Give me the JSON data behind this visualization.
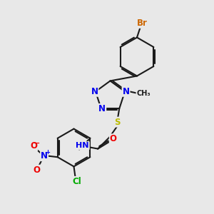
{
  "bg_color": "#e8e8e8",
  "bond_color": "#1a1a1a",
  "bond_width": 1.5,
  "atom_colors": {
    "N": "#0000ee",
    "O": "#ee0000",
    "S": "#bbbb00",
    "Cl": "#00aa00",
    "Br": "#cc6600",
    "C": "#1a1a1a",
    "H": "#666666"
  },
  "font_size": 8.5
}
